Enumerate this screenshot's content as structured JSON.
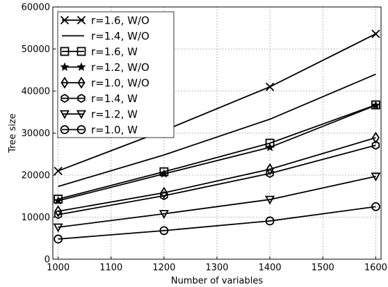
{
  "chart_data": {
    "type": "line",
    "title": "",
    "xlabel": "Number of variables",
    "ylabel": "Tree size",
    "x": [
      1000,
      1200,
      1400,
      1600
    ],
    "xlim": [
      990,
      1610
    ],
    "ylim": [
      0,
      60000
    ],
    "xticks": [
      1000,
      1100,
      1200,
      1300,
      1400,
      1500,
      1600
    ],
    "yticks": [
      0,
      10000,
      20000,
      30000,
      40000,
      50000,
      60000
    ],
    "grid": true,
    "legend_position": "top-left",
    "line_color": "#000000",
    "series": [
      {
        "name": "r=1.6, W/O",
        "marker": "x",
        "values": [
          21000,
          30600,
          41000,
          53600
        ]
      },
      {
        "name": "r=1.4, W/O",
        "marker": "none",
        "values": [
          17300,
          24800,
          33300,
          44000
        ]
      },
      {
        "name": "r=1.6, W",
        "marker": "square",
        "values": [
          14300,
          20800,
          27600,
          36700
        ]
      },
      {
        "name": "r=1.2, W/O",
        "marker": "star",
        "values": [
          13900,
          20300,
          26600,
          36600
        ]
      },
      {
        "name": "r=1.0, W/O",
        "marker": "diamond",
        "values": [
          11400,
          15800,
          21400,
          28900
        ]
      },
      {
        "name": "r=1.4, W",
        "marker": "hexagon",
        "values": [
          10600,
          15100,
          20400,
          27100
        ]
      },
      {
        "name": "r=1.2, W",
        "marker": "triangle-down",
        "values": [
          7600,
          10800,
          14200,
          19700
        ]
      },
      {
        "name": "r=1.0, W",
        "marker": "circle",
        "values": [
          4800,
          6800,
          9100,
          12500
        ]
      }
    ]
  }
}
